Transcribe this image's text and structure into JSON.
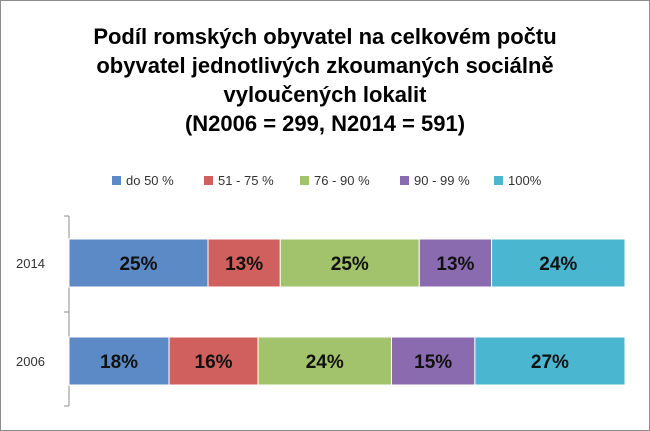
{
  "chart_data": {
    "type": "bar",
    "stacked": "percent",
    "orientation": "horizontal",
    "title_lines": [
      "Podíl romských obyvatel na celkovém počtu",
      "obyvatel jednotlivých zkoumaných sociálně",
      "vyloučených lokalit",
      "(N2006 = 299, N2014 = 591)"
    ],
    "categories": [
      "2014",
      "2006"
    ],
    "series": [
      {
        "name": "do 50 %",
        "color": "#5b8ac6",
        "values": [
          25,
          18
        ],
        "labels": [
          "25%",
          "18%"
        ]
      },
      {
        "name": "51 - 75 %",
        "color": "#d0605d",
        "values": [
          13,
          16
        ],
        "labels": [
          "13%",
          "16%"
        ]
      },
      {
        "name": "76 - 90 %",
        "color": "#a2c36b",
        "values": [
          25,
          24
        ],
        "labels": [
          "25%",
          "24%"
        ]
      },
      {
        "name": "90 - 99 %",
        "color": "#8a6bb0",
        "values": [
          13,
          15
        ],
        "labels": [
          "13%",
          "15%"
        ]
      },
      {
        "name": "100%",
        "color": "#4bb6cf",
        "values": [
          24,
          27
        ],
        "labels": [
          "24%",
          "27%"
        ]
      }
    ],
    "legend_position": "top",
    "grid": false,
    "xlim": [
      0,
      100
    ]
  }
}
